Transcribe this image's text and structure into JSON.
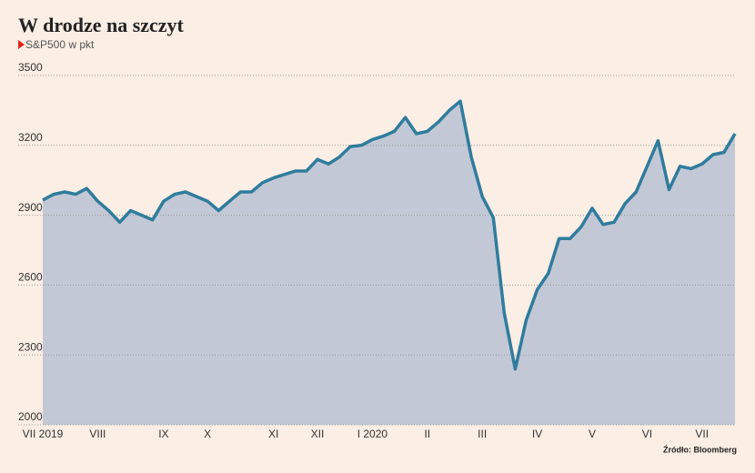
{
  "chart_data": {
    "type": "area",
    "title": "W drodze na szczyt",
    "subtitle": "S&P500 w pkt",
    "source": "Źródło: Bloomberg",
    "categories": [
      "VII 2019",
      null,
      null,
      null,
      null,
      "VIII",
      null,
      null,
      null,
      null,
      null,
      "IX",
      null,
      null,
      null,
      "X",
      null,
      null,
      null,
      null,
      null,
      "XI",
      null,
      null,
      null,
      "XII",
      null,
      null,
      null,
      null,
      "I 2020",
      null,
      null,
      null,
      null,
      "II",
      null,
      null,
      null,
      null,
      "III",
      null,
      null,
      null,
      null,
      "IV",
      null,
      null,
      null,
      null,
      "V",
      null,
      null,
      null,
      null,
      "VI",
      null,
      null,
      null,
      null,
      "VII",
      null,
      null,
      null
    ],
    "values": [
      2965,
      2990,
      3000,
      2990,
      3015,
      2960,
      2920,
      2870,
      2920,
      2900,
      2880,
      2960,
      2990,
      3000,
      2980,
      2960,
      2920,
      2960,
      3000,
      3000,
      3040,
      3060,
      3075,
      3090,
      3090,
      3140,
      3120,
      3150,
      3195,
      3200,
      3225,
      3240,
      3260,
      3320,
      3250,
      3260,
      3300,
      3350,
      3390,
      3150,
      2980,
      2890,
      2480,
      2240,
      2450,
      2580,
      2650,
      2800,
      2800,
      2850,
      2930,
      2860,
      2870,
      2950,
      3000,
      3110,
      3220,
      3010,
      3110,
      3100,
      3120,
      3160,
      3170,
      3250
    ],
    "color": "#2f7c9d",
    "fill": "#c3c8d6",
    "ylim": [
      2000,
      3500
    ],
    "yticks": [
      2000,
      2300,
      2600,
      2900,
      3200,
      3500
    ],
    "grid": true
  }
}
